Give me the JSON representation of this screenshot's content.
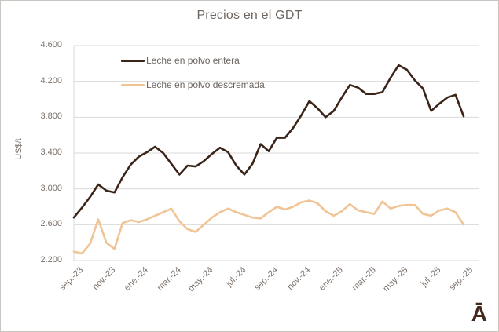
{
  "page": {
    "title": "Precios en el GDT",
    "logo_mark": "Ā"
  },
  "chart_data": {
    "type": "line",
    "title": "Precios en el GDT",
    "xlabel": "",
    "ylabel": "US$/t",
    "ylim": [
      2200,
      4600
    ],
    "ytick_values": [
      4600,
      4200,
      3800,
      3400,
      3000,
      2600,
      2200
    ],
    "ytick_labels": [
      "4.600",
      "4.200",
      "3.800",
      "3.400",
      "3.000",
      "2.600",
      "2.200"
    ],
    "x_tick_labels": [
      "sep.-23",
      "nov.-23",
      "ene.-24",
      "mar.-24",
      "may.-24",
      "jul.-24",
      "sep.-24",
      "nov.-24",
      "ene.-25",
      "mar.-25",
      "may.-25",
      "jul.-25",
      "sep.-25"
    ],
    "points_per_label": 4,
    "grid": true,
    "gridline_color": "#d9d9d9",
    "legend_position": "inside-top-left",
    "series": [
      {
        "name": "Leche en polvo entera",
        "color": "#3a2417",
        "values": [
          2680,
          2790,
          2910,
          3050,
          2980,
          2960,
          3130,
          3270,
          3360,
          3410,
          3470,
          3400,
          3280,
          3160,
          3260,
          3250,
          3310,
          3390,
          3460,
          3410,
          3260,
          3160,
          3280,
          3500,
          3420,
          3570,
          3570,
          3680,
          3820,
          3980,
          3900,
          3800,
          3870,
          4020,
          4160,
          4130,
          4060,
          4060,
          4080,
          4240,
          4380,
          4330,
          4210,
          4120,
          3870,
          3950,
          4020,
          4050,
          3810
        ]
      },
      {
        "name": "Leche en polvo descremada",
        "color": "#f0c494",
        "values": [
          2300,
          2280,
          2390,
          2660,
          2400,
          2330,
          2620,
          2650,
          2630,
          2660,
          2700,
          2740,
          2780,
          2640,
          2550,
          2520,
          2600,
          2680,
          2740,
          2780,
          2740,
          2710,
          2680,
          2670,
          2740,
          2800,
          2770,
          2800,
          2850,
          2870,
          2840,
          2750,
          2700,
          2750,
          2830,
          2760,
          2740,
          2720,
          2860,
          2780,
          2810,
          2820,
          2820,
          2720,
          2700,
          2760,
          2780,
          2740,
          2600
        ]
      }
    ]
  }
}
